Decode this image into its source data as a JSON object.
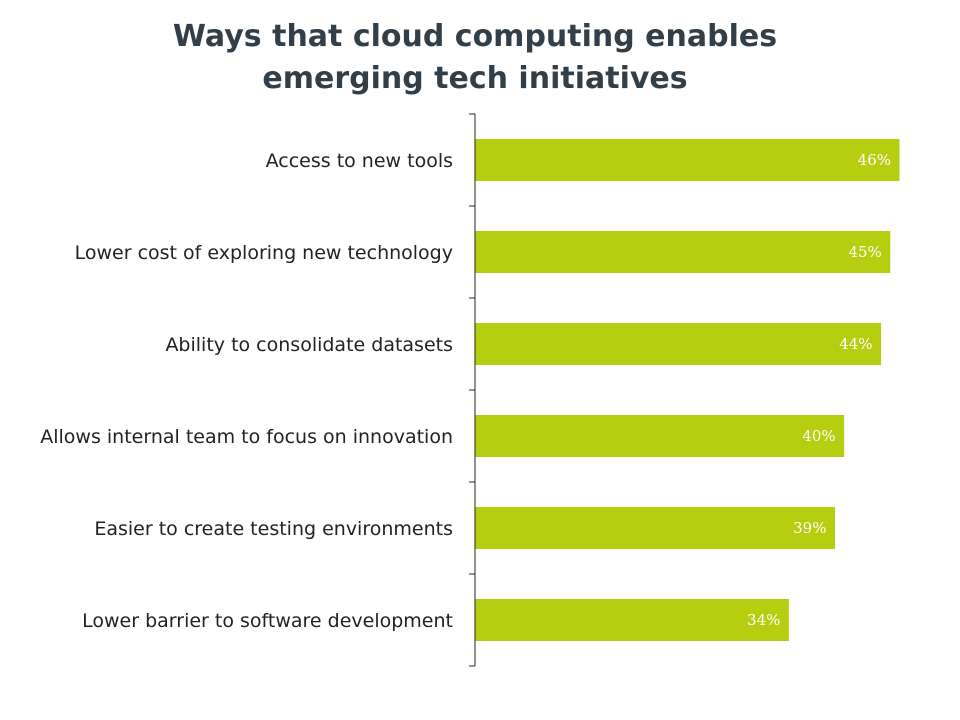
{
  "colors": {
    "bar": "#b5cf10",
    "title": "#333f48",
    "label": "#222222",
    "value_label": "#ffffff",
    "axis": "#262626"
  },
  "chart_data": {
    "type": "bar",
    "orientation": "horizontal",
    "title_lines": [
      "Ways that cloud computing enables",
      "emerging tech initiatives"
    ],
    "categories": [
      "Access to new tools ",
      "Lower cost of exploring new technology",
      "Ability to consolidate datasets",
      "Allows internal team to focus on innovation",
      "Easier to create testing environments",
      "Lower barrier to software development"
    ],
    "values": [
      46,
      45,
      44,
      40,
      39,
      34
    ],
    "value_labels": [
      "46%",
      "45%",
      "44%",
      "40%",
      "39%",
      "34%"
    ],
    "xlim": [
      0,
      46
    ],
    "grid": false,
    "legend": "none"
  }
}
